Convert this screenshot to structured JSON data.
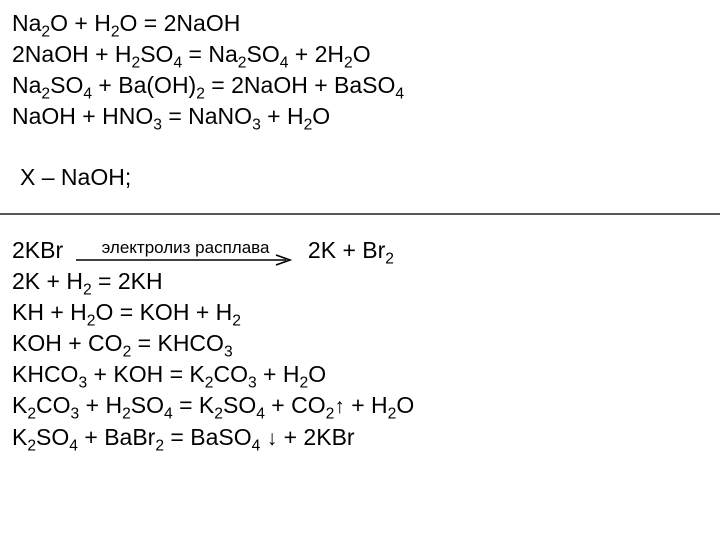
{
  "textColor": "#000000",
  "backgroundColor": "#ffffff",
  "dividerColor": "#595959",
  "block1": {
    "eq1": "Na<sub>2</sub>O  +  H<sub>2</sub>O  =   2NaOH",
    "eq2": "2NaOH    +  H<sub>2</sub>SO<sub>4</sub>   = Na<sub>2</sub>SO<sub>4</sub>   + 2H<sub>2</sub>O",
    "eq3": "Na<sub>2</sub>SO<sub>4</sub>   +  Ba(OH)<sub>2</sub>  =  2NaOH  +  BaSO<sub>4</sub>",
    "eq4": "NaOH  +  HNO<sub>3</sub>  =  NaNO<sub>3</sub>  +  H<sub>2</sub>O",
    "answer": " X – NaOH;"
  },
  "block2": {
    "eq1_left": "2KBr",
    "eq1_arrowLabel": "электролиз расплава",
    "eq1_arrowWidth": 220,
    "eq1_right": "2K  +  Br<sub>2</sub>",
    "eq2": "2K  +  H<sub>2</sub> = 2KH",
    "eq3": "KH  +  H<sub>2</sub>O  =  KOH  +  H<sub>2</sub>",
    "eq4": "KOH   +  CO<sub>2</sub>  =  KHCO<sub>3</sub>",
    "eq5": "KHCO<sub>3</sub>  +  KOH  =  K<sub>2</sub>CO<sub>3</sub>  +  H<sub>2</sub>O",
    "eq6": "K<sub>2</sub>CO<sub>3</sub>  +  H<sub>2</sub>SO<sub>4</sub>  =  K<sub>2</sub>SO<sub>4</sub>  +  CO<sub>2</sub><span class=\"updown\">↑</span>  +  H<sub>2</sub>O",
    "eq7": "K<sub>2</sub>SO<sub>4</sub>  +  BaBr<sub>2</sub>  =  BaSO<sub>4</sub> <span class=\"updown\">↓</span> +  2KBr"
  }
}
